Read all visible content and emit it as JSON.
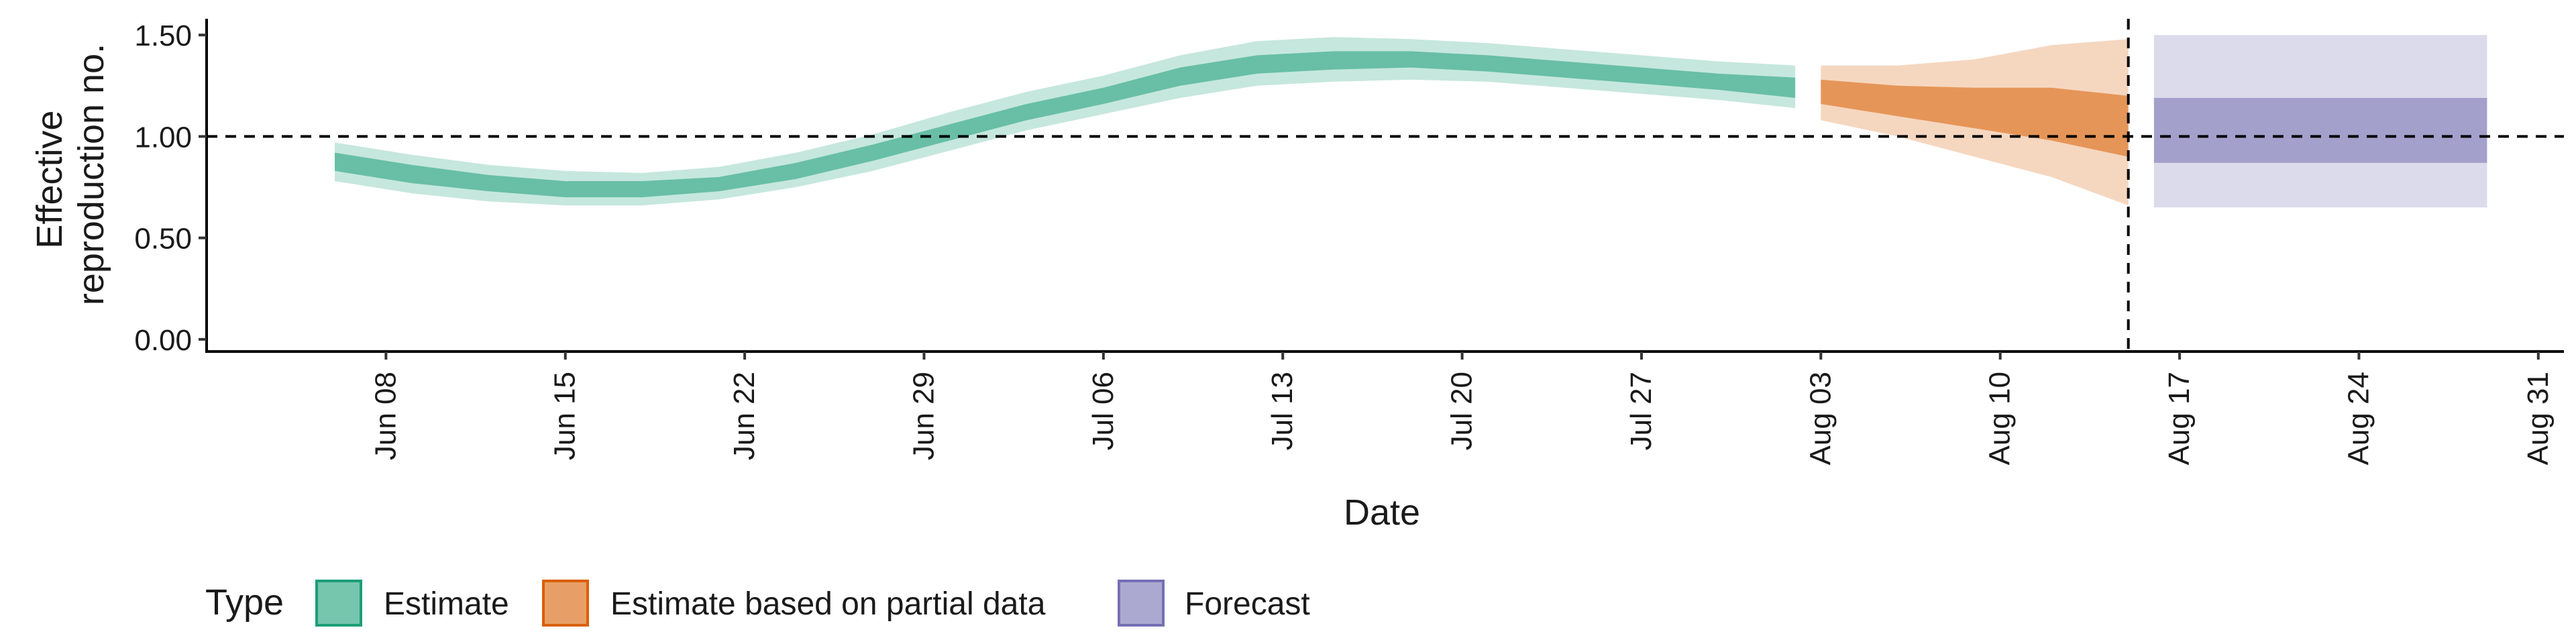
{
  "chart_data": {
    "type": "area",
    "title": "",
    "xlabel": "Date",
    "ylabel_lines": [
      "Effective",
      "reproduction no."
    ],
    "x_ticks": [
      "2020-06-08",
      "2020-06-15",
      "2020-06-22",
      "2020-06-29",
      "2020-07-06",
      "2020-07-13",
      "2020-07-20",
      "2020-07-27",
      "2020-08-03",
      "2020-08-10",
      "2020-08-17",
      "2020-08-24",
      "2020-08-31"
    ],
    "x_tick_labels": [
      "Jun 08",
      "Jun 15",
      "Jun 22",
      "Jun 29",
      "Jul 06",
      "Jul 13",
      "Jul 20",
      "Jul 27",
      "Aug 03",
      "Aug 10",
      "Aug 17",
      "Aug 24",
      "Aug 31"
    ],
    "xlim": [
      "2020-06-01",
      "2020-09-01"
    ],
    "y_ticks": [
      0,
      0.5,
      1.0,
      1.5
    ],
    "y_tick_labels": [
      "0.00",
      "0.50",
      "1.00",
      "1.50"
    ],
    "ylim": [
      -0.06,
      1.58
    ],
    "reference_lines": {
      "horizontal_y": 1.0,
      "vertical_date": "2020-08-15"
    },
    "legend": {
      "title": "Type",
      "position": "bottom-left",
      "entries": [
        {
          "label": "Estimate",
          "color": "#1b9e77"
        },
        {
          "label": "Estimate based on partial data",
          "color": "#d95f02"
        },
        {
          "label": "Forecast",
          "color": "#7570b3"
        }
      ]
    },
    "grid": false,
    "series": [
      {
        "name": "Estimate",
        "color": "#1b9e77",
        "band_opacity_outer": 0.25,
        "band_opacity_inner": 0.55,
        "points": [
          {
            "date": "2020-06-06",
            "lo90": 0.78,
            "lo50": 0.83,
            "hi50": 0.92,
            "hi90": 0.97
          },
          {
            "date": "2020-06-09",
            "lo90": 0.72,
            "lo50": 0.77,
            "hi50": 0.86,
            "hi90": 0.91
          },
          {
            "date": "2020-06-12",
            "lo90": 0.68,
            "lo50": 0.73,
            "hi50": 0.81,
            "hi90": 0.86
          },
          {
            "date": "2020-06-15",
            "lo90": 0.66,
            "lo50": 0.7,
            "hi50": 0.78,
            "hi90": 0.83
          },
          {
            "date": "2020-06-18",
            "lo90": 0.66,
            "lo50": 0.7,
            "hi50": 0.78,
            "hi90": 0.82
          },
          {
            "date": "2020-06-21",
            "lo90": 0.69,
            "lo50": 0.73,
            "hi50": 0.8,
            "hi90": 0.85
          },
          {
            "date": "2020-06-24",
            "lo90": 0.75,
            "lo50": 0.79,
            "hi50": 0.87,
            "hi90": 0.92
          },
          {
            "date": "2020-06-27",
            "lo90": 0.83,
            "lo50": 0.88,
            "hi50": 0.96,
            "hi90": 1.01
          },
          {
            "date": "2020-06-30",
            "lo90": 0.93,
            "lo50": 0.98,
            "hi50": 1.06,
            "hi90": 1.12
          },
          {
            "date": "2020-07-03",
            "lo90": 1.03,
            "lo50": 1.08,
            "hi50": 1.16,
            "hi90": 1.22
          },
          {
            "date": "2020-07-06",
            "lo90": 1.11,
            "lo50": 1.16,
            "hi50": 1.24,
            "hi90": 1.3
          },
          {
            "date": "2020-07-09",
            "lo90": 1.19,
            "lo50": 1.25,
            "hi50": 1.34,
            "hi90": 1.4
          },
          {
            "date": "2020-07-12",
            "lo90": 1.25,
            "lo50": 1.31,
            "hi50": 1.4,
            "hi90": 1.47
          },
          {
            "date": "2020-07-15",
            "lo90": 1.27,
            "lo50": 1.33,
            "hi50": 1.42,
            "hi90": 1.49
          },
          {
            "date": "2020-07-18",
            "lo90": 1.28,
            "lo50": 1.34,
            "hi50": 1.42,
            "hi90": 1.48
          },
          {
            "date": "2020-07-21",
            "lo90": 1.27,
            "lo50": 1.32,
            "hi50": 1.4,
            "hi90": 1.46
          },
          {
            "date": "2020-07-24",
            "lo90": 1.24,
            "lo50": 1.29,
            "hi50": 1.37,
            "hi90": 1.43
          },
          {
            "date": "2020-07-27",
            "lo90": 1.21,
            "lo50": 1.26,
            "hi50": 1.34,
            "hi90": 1.4
          },
          {
            "date": "2020-07-30",
            "lo90": 1.18,
            "lo50": 1.23,
            "hi50": 1.31,
            "hi90": 1.37
          },
          {
            "date": "2020-08-02",
            "lo90": 1.14,
            "lo50": 1.19,
            "hi50": 1.29,
            "hi90": 1.35
          }
        ]
      },
      {
        "name": "Estimate based on partial data",
        "color": "#d95f02",
        "band_opacity_outer": 0.25,
        "band_opacity_inner": 0.55,
        "points": [
          {
            "date": "2020-08-03",
            "lo90": 1.08,
            "lo50": 1.16,
            "hi50": 1.28,
            "hi90": 1.35
          },
          {
            "date": "2020-08-06",
            "lo90": 1.0,
            "lo50": 1.1,
            "hi50": 1.25,
            "hi90": 1.35
          },
          {
            "date": "2020-08-09",
            "lo90": 0.9,
            "lo50": 1.04,
            "hi50": 1.24,
            "hi90": 1.38
          },
          {
            "date": "2020-08-12",
            "lo90": 0.8,
            "lo50": 0.98,
            "hi50": 1.24,
            "hi90": 1.45
          },
          {
            "date": "2020-08-15",
            "lo90": 0.66,
            "lo50": 0.9,
            "hi50": 1.2,
            "hi90": 1.48
          }
        ]
      },
      {
        "name": "Forecast",
        "color": "#7570b3",
        "band_opacity_outer": 0.25,
        "band_opacity_inner": 0.55,
        "points": [
          {
            "date": "2020-08-16",
            "lo90": 0.65,
            "lo50": 0.87,
            "hi50": 1.19,
            "hi90": 1.5
          },
          {
            "date": "2020-08-29",
            "lo90": 0.65,
            "lo50": 0.87,
            "hi50": 1.19,
            "hi90": 1.5
          }
        ]
      }
    ]
  }
}
